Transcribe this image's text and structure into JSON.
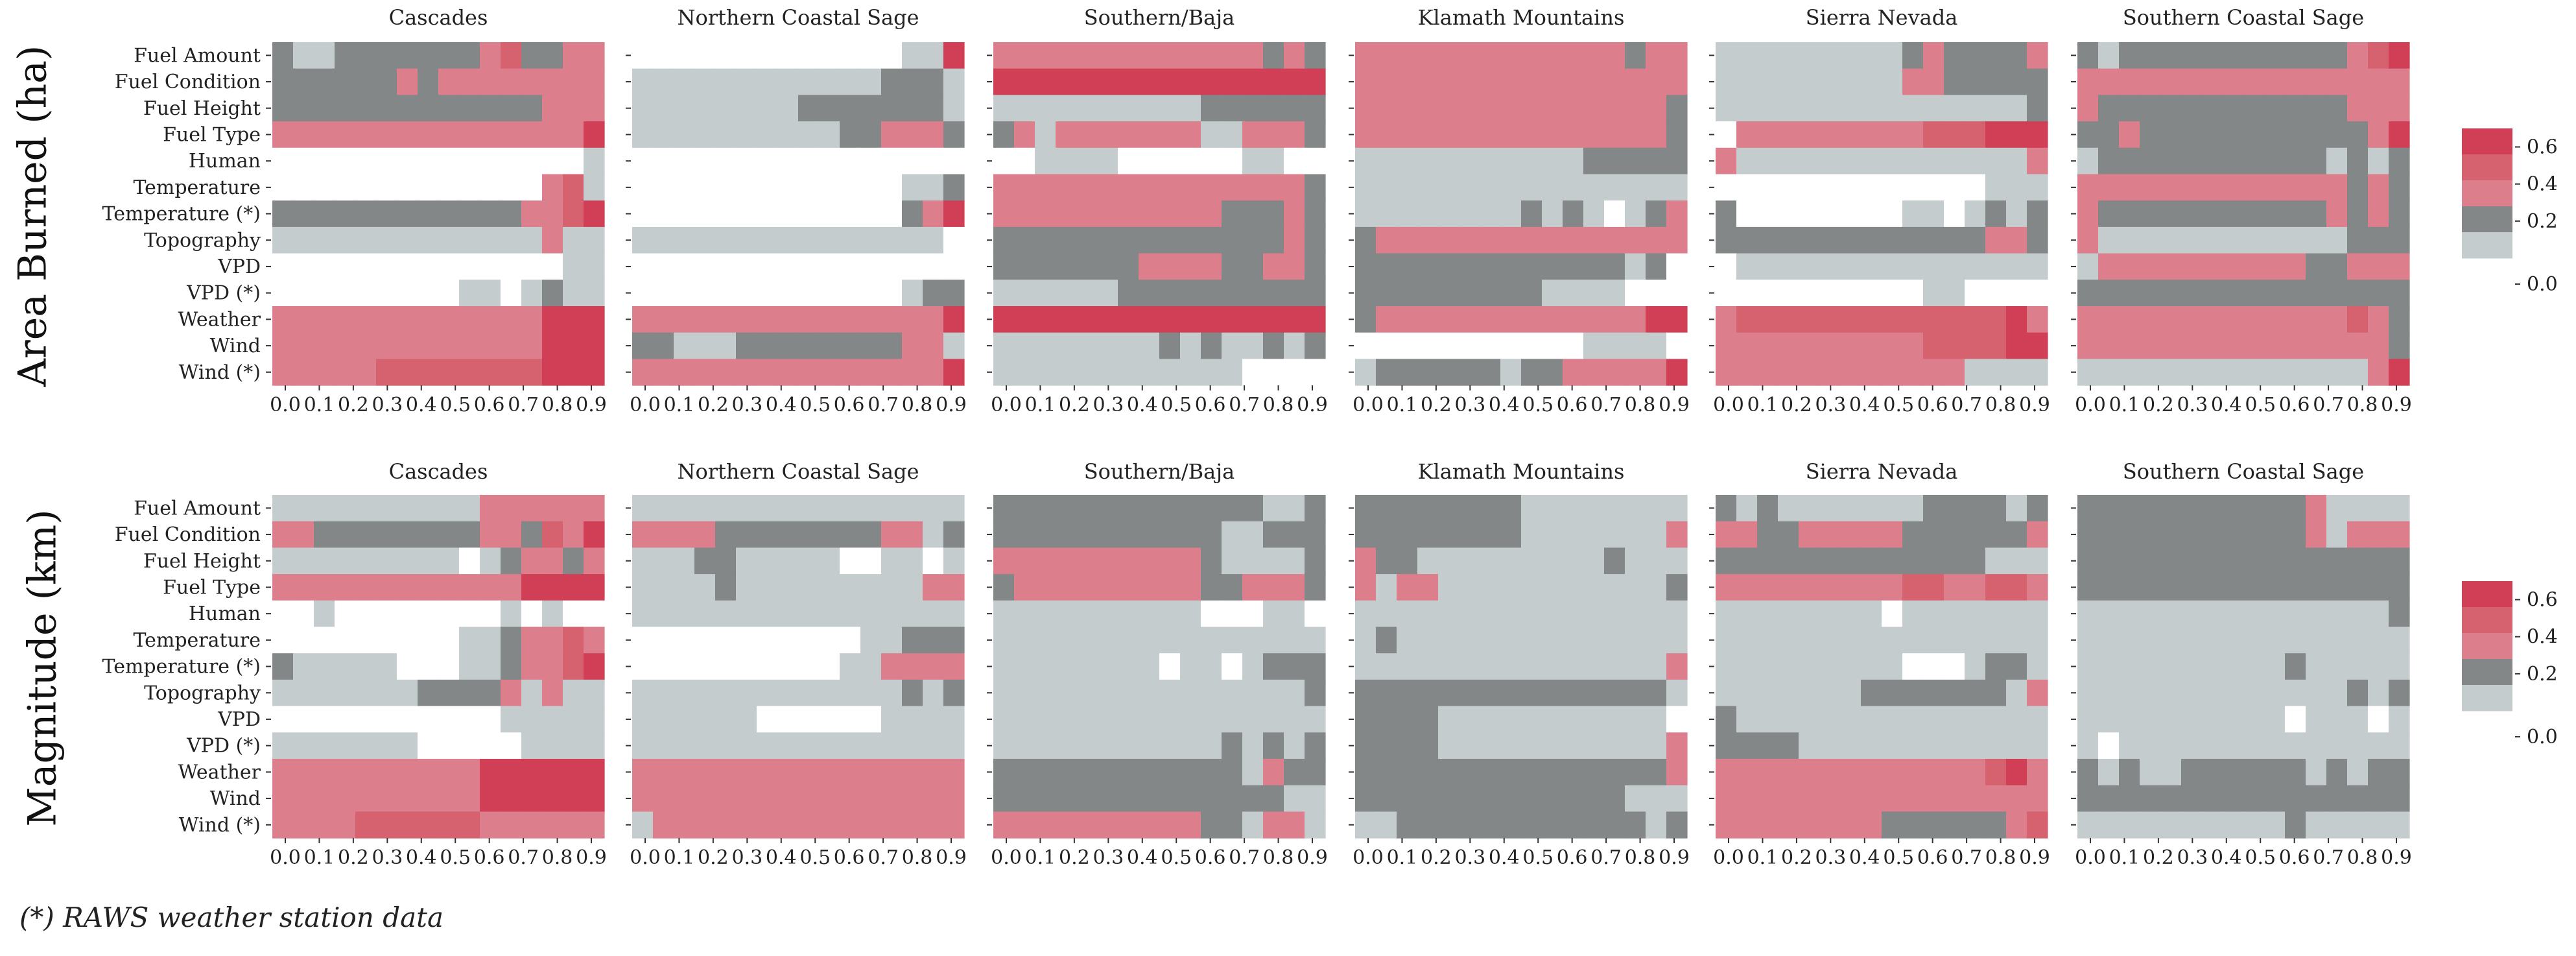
{
  "figure": {
    "footnote": "(*) RAWS weather station data"
  },
  "palette": {
    "levels": [
      "#ffffff",
      "#c4cccd",
      "#838788",
      "#dc7e8c",
      "#d7626f",
      "#d03f55"
    ],
    "level_values": [
      0.0,
      0.1,
      0.3,
      0.5,
      0.65,
      0.75
    ]
  },
  "chart_data": [
    {
      "type": "heatmap",
      "row_title": "Area Burned (ha)",
      "legend": {
        "ticks": [
          "0.0",
          "0.2",
          "0.4",
          "0.6"
        ],
        "range": [
          0,
          0.7
        ],
        "placement": "right"
      },
      "variables": [
        "Fuel Amount",
        "Fuel Condition",
        "Fuel Height",
        "Fuel Type",
        "Human",
        "Temperature",
        "Temperature (*)",
        "Topography",
        "VPD",
        "VPD (*)",
        "Weather",
        "Wind",
        "Wind (*)"
      ],
      "x": [
        "0.0",
        "0.1",
        "0.2",
        "0.3",
        "0.4",
        "0.5",
        "0.6",
        "0.7",
        "0.8",
        "0.9"
      ],
      "panels": [
        {
          "name": "Cascades",
          "grid": [
            "2112222222342233",
            "2222223233333333",
            "2222222222222333",
            "3333333333333335",
            "0000000000000001",
            "0000000000000341",
            "2222222222223345",
            "1111111111111311",
            "0000000000000011",
            "0000000001101211",
            "3333333333333555",
            "3333333333333555",
            "3333344444444555"
          ]
        },
        {
          "name": "Northern Coastal Sage",
          "grid": [
            "0000000000000115",
            "1111111111112221",
            "1111111122222221",
            "1111111111223332",
            "0000000000000000",
            "0000000000000112",
            "0000000000000235",
            "1111111111111110",
            "0000000000000000",
            "0000000000000122",
            "3333333333333335",
            "2211122222222331",
            "3333333333333335"
          ]
        },
        {
          "name": "Southern/Baja",
          "grid": [
            "3333333333333232",
            "5555555555555555",
            "1111111111222222",
            "2313333333113332",
            "0011110000001100",
            "3333333333333332",
            "3333333333322232",
            "2222222222222232",
            "2222222333322332",
            "1111112222222222",
            "5555555555555555",
            "1111111121211212",
            "1111111111110000"
          ]
        },
        {
          "name": "Klamath Mountains",
          "grid": [
            "3333333333333233",
            "3333333333333333",
            "3333333333333332",
            "3333333333333332",
            "1111111111122222",
            "1111111111111111",
            "1111111121210123",
            "2333333333333333",
            "2222222222222120",
            "2222222221111000",
            "2333333333333355",
            "0000000000011110",
            "1222222122333335"
          ]
        },
        {
          "name": "Sierra Nevada",
          "grid": [
            "1111111112322223",
            "1111111113322222",
            "1111111111111112",
            "0333333333444555",
            "3111111111111113",
            "0000000000000111",
            "2000000001101212",
            "2222222222222332",
            "0111111111111111",
            "0000000000110000",
            "3444444444444453",
            "3333333333444455",
            "3333333333331111"
          ]
        },
        {
          "name": "Southern Coastal Sage",
          "grid": [
            "2122222222222345",
            "3333333333333333",
            "3222222222222333",
            "2232222222222235",
            "1222222222221212",
            "3333333333333232",
            "3222222222223232",
            "3111111111111222",
            "1333333333322333",
            "2222222222222222",
            "3333333333333432",
            "3333333333333332",
            "1111111111111135"
          ]
        }
      ]
    },
    {
      "type": "heatmap",
      "row_title": "Magnitude (km)",
      "legend": {
        "ticks": [
          "0.0",
          "0.2",
          "0.4",
          "0.6"
        ],
        "range": [
          0,
          0.7
        ],
        "placement": "right"
      },
      "variables": [
        "Fuel Amount",
        "Fuel Condition",
        "Fuel Height",
        "Fuel Type",
        "Human",
        "Temperature",
        "Temperature (*)",
        "Topography",
        "VPD",
        "VPD (*)",
        "Weather",
        "Wind",
        "Wind (*)"
      ],
      "x": [
        "0.0",
        "0.1",
        "0.2",
        "0.3",
        "0.4",
        "0.5",
        "0.6",
        "0.7",
        "0.8",
        "0.9"
      ],
      "panels": [
        {
          "name": "Cascades",
          "grid": [
            "1111111111333333",
            "3322222222332435",
            "1111111110123323",
            "3333333333335555",
            "0010000000010100",
            "0000000001123343",
            "2111110001123345",
            "1111111222231311",
            "0000000000011111",
            "1111111000001111",
            "3333333333555555",
            "3333333333555555",
            "3333444444333333"
          ]
        },
        {
          "name": "Northern Coastal Sage",
          "grid": [
            "1111111111111111",
            "3333222222223312",
            "1112211111001101",
            "1111211111111133",
            "1111111111111111",
            "0000000000011222",
            "0000000000113333",
            "1111111111111212",
            "1111110000001111",
            "1111111111111111",
            "3333333333333333",
            "3333333333333333",
            "1333333333333333"
          ]
        },
        {
          "name": "Southern/Baja",
          "grid": [
            "2222222222222112",
            "2222222222211222",
            "3333333333211112",
            "2333333333223332",
            "1111111111000110",
            "1111111111111111",
            "1111111101101222",
            "1111111111111112",
            "1111111111111111",
            "1111111111121212",
            "2222222222221322",
            "2222222222222211",
            "3333333333221331"
          ]
        },
        {
          "name": "Klamath Mountains",
          "grid": [
            "2222222211111111",
            "2222222211111113",
            "3221111111112111",
            "3133111111111112",
            "1111111111111111",
            "1211111111111111",
            "1111111111111113",
            "2222222222222221",
            "2222111111111110",
            "2222111111111113",
            "2222222222222223",
            "2222222222222111",
            "1122222222222212"
          ]
        },
        {
          "name": "Sierra Nevada",
          "grid": [
            "2121111111222212",
            "3322333332222223",
            "2222222222222111",
            "3333333334433443",
            "1111111101111111",
            "1111111111111111",
            "1111111110001221",
            "1111111222222213",
            "2111111111111111",
            "2222111111111111",
            "3333333333333453",
            "3333333333333333",
            "3333333322222234"
          ]
        },
        {
          "name": "Southern Coastal Sage",
          "grid": [
            "2222222222231111",
            "2222222222231333",
            "2222222222222222",
            "2222222222222222",
            "1111111111111112",
            "1111111111111111",
            "1111111111211111",
            "1111111111111212",
            "1111111111011101",
            "1011111111111111",
            "2121122222212122",
            "2222222222222222",
            "1111111111211111"
          ]
        }
      ]
    }
  ]
}
